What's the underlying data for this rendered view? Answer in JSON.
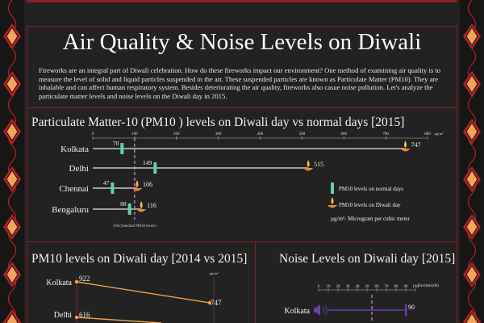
{
  "title": "Air Quality & Noise Levels on Diwali",
  "intro": "Fireworks are an integral part of Diwali celebration. How do these fireworks impact our environment?  One method of examining air quality is to measure the level of solid and liquid particles suspended in the air. These suspended particles are known as Particulate Matter (PM10). They are inhalable and can affect human respiratory system.  Besides deteriorating the air quality, fireworks also casue noise pollution.  Let's analyze the particulate matter levels and noise levels on the Diwali day in 2015.",
  "colors": {
    "normal": "#5fd3a8",
    "diwali_line": "#e8e8e8",
    "diwali_marker": "#e8892c",
    "standard": "#d98bd6",
    "noise": "#6a3fa8",
    "border": "#8b1e1e",
    "line2014": "#f0a04b"
  },
  "chart_data": [
    {
      "type": "bar",
      "title": "Particulate Matter-10 (PM10 ) levels on Diwali day vs normal days [2015]",
      "categories": [
        "Kolkata",
        "Delhi",
        "Chennai",
        "Bengaluru"
      ],
      "series": [
        {
          "name": "PM10 levels on normal days",
          "values": [
            70,
            149,
            47,
            88
          ]
        },
        {
          "name": "PM10 levels on Diwali day",
          "values": [
            747,
            515,
            106,
            116
          ]
        }
      ],
      "xlim": [
        0,
        800
      ],
      "xticks": [
        0,
        100,
        200,
        300,
        400,
        500,
        600,
        700,
        800
      ],
      "unit_label": "µg/m³",
      "standard": {
        "value": 100,
        "label": "100 (Standard PM10 levels)"
      },
      "legend": {
        "placement": "right",
        "unit_note": "µg/m³- Microgram per cubic meter"
      }
    },
    {
      "type": "line",
      "title": "PM10 levels on Diwali day [2014 vs 2015]",
      "unit_label": "µg/m³",
      "series": [
        {
          "city": "Kolkata",
          "values": [
            922,
            747
          ]
        },
        {
          "city": "Delhi",
          "values": [
            616
          ]
        }
      ],
      "ylim": [
        0,
        1000
      ]
    },
    {
      "type": "bar",
      "title": "Noise Levels on Diwali day [2015]",
      "categories": [
        "Kolkata"
      ],
      "values": [
        90
      ],
      "xlim": [
        0,
        100
      ],
      "xticks": [
        0,
        10,
        20,
        30,
        40,
        50,
        60,
        70,
        80,
        90,
        100
      ],
      "unit_label": "Decibels(db)",
      "standard": {
        "value": 55
      }
    }
  ]
}
